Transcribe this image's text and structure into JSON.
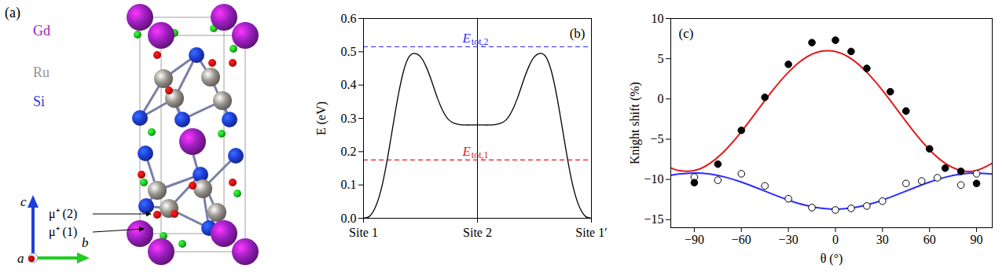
{
  "chart_data": [
    {
      "type": "structure",
      "panel_label": "(a)",
      "elements": [
        {
          "name": "Gd",
          "color": "#9b1fc0"
        },
        {
          "name": "Ru",
          "color": "#9a948e"
        },
        {
          "name": "Si",
          "color": "#1f3fd8"
        }
      ],
      "sites": [
        {
          "label": "μ⁺ (2)",
          "color": "#dd1111"
        },
        {
          "label": "μ⁺ (1)",
          "color": "#22cc22"
        }
      ],
      "axes": [
        {
          "name": "c",
          "color": "#1f3fd8"
        },
        {
          "name": "b",
          "color": "#22cc22"
        },
        {
          "name": "a",
          "color": "#cc0000"
        }
      ]
    },
    {
      "type": "line",
      "panel_label": "(b)",
      "ylabel": "E (eV)",
      "xlim": [
        0,
        2
      ],
      "xticks": [
        {
          "value": 0,
          "label": "Site 1"
        },
        {
          "value": 1,
          "label": "Site 2"
        },
        {
          "value": 2,
          "label": "Site 1′"
        }
      ],
      "ylim": [
        0,
        0.6
      ],
      "yticks": [
        {
          "value": 0,
          "label": "0.0"
        },
        {
          "value": 0.1,
          "label": "0.1"
        },
        {
          "value": 0.2,
          "label": "0.2"
        },
        {
          "value": 0.3,
          "label": "0.3"
        },
        {
          "value": 0.4,
          "label": "0.4"
        },
        {
          "value": 0.5,
          "label": "0.5"
        },
        {
          "value": 0.6,
          "label": "0.6"
        }
      ],
      "x": [
        0,
        0.05,
        0.1,
        0.15,
        0.2,
        0.25,
        0.3,
        0.35,
        0.4,
        0.45,
        0.5,
        0.55,
        0.6,
        0.65,
        0.7,
        0.75,
        0.8,
        0.85,
        0.9,
        0.95,
        1,
        1.05,
        1.1,
        1.15,
        1.2,
        1.25,
        1.3,
        1.35,
        1.4,
        1.45,
        1.5,
        1.55,
        1.6,
        1.65,
        1.7,
        1.75,
        1.8,
        1.85,
        1.9,
        1.95,
        2
      ],
      "values": [
        0,
        0.005,
        0.03,
        0.08,
        0.16,
        0.26,
        0.36,
        0.44,
        0.485,
        0.495,
        0.485,
        0.455,
        0.41,
        0.36,
        0.32,
        0.295,
        0.285,
        0.281,
        0.28,
        0.28,
        0.28,
        0.28,
        0.28,
        0.281,
        0.285,
        0.295,
        0.32,
        0.36,
        0.41,
        0.455,
        0.485,
        0.495,
        0.485,
        0.44,
        0.36,
        0.26,
        0.16,
        0.08,
        0.03,
        0.005,
        0
      ],
      "color": "#000000",
      "rules_x": [
        1
      ],
      "levels": [
        {
          "text": "E",
          "subscript": "tot,2",
          "value": 0.515,
          "color": "#2b2bff",
          "line_style": "dashed"
        },
        {
          "text": "E",
          "subscript": "tot,1",
          "value": 0.175,
          "color": "#e31a1c",
          "line_style": "dashed"
        }
      ]
    },
    {
      "type": "scatter",
      "panel_label": "(c)",
      "xlabel": "θ (°)",
      "ylabel": "Knight shift (%)",
      "xlim": [
        -105,
        100
      ],
      "xticks": [
        -90,
        -60,
        -30,
        0,
        30,
        60,
        90
      ],
      "ylim": [
        -16,
        10
      ],
      "yticks": [
        -15,
        -10,
        -5,
        0,
        5,
        10
      ],
      "series": [
        {
          "type": "line",
          "color": "#e31a1c",
          "line_style": "solid",
          "x": [
            -105,
            -100,
            -90,
            -80,
            -70,
            -60,
            -50,
            -40,
            -30,
            -20,
            -10,
            0,
            10,
            20,
            30,
            40,
            50,
            60,
            70,
            80,
            90,
            100
          ],
          "values": [
            -8.55,
            -8.89,
            -8.89,
            -8.0,
            -6.32,
            -4.07,
            -1.5,
            1.07,
            3.32,
            5.0,
            5.89,
            5.89,
            5.0,
            3.32,
            1.07,
            -1.5,
            -4.07,
            -6.32,
            -8.0,
            -8.89,
            -8.89,
            -8.0
          ]
        },
        {
          "type": "line",
          "color": "#2b2bff",
          "line_style": "solid",
          "x": [
            -105,
            -100,
            -90,
            -80,
            -70,
            -60,
            -50,
            -40,
            -30,
            -20,
            -10,
            0,
            10,
            20,
            30,
            40,
            50,
            60,
            70,
            80,
            90,
            100
          ],
          "values": [
            -9.5,
            -9.34,
            -9.2,
            -9.34,
            -9.73,
            -10.33,
            -11.06,
            -11.84,
            -12.58,
            -13.17,
            -13.56,
            -13.7,
            -13.56,
            -13.17,
            -12.58,
            -11.84,
            -11.06,
            -10.33,
            -9.73,
            -9.34,
            -9.2,
            -9.34
          ]
        },
        {
          "type": "scatter",
          "marker": "open_circle",
          "color": "#000000",
          "x": [
            -90,
            -75,
            -60,
            -45,
            -30,
            -15,
            0,
            10,
            20,
            30,
            45,
            55,
            65,
            80,
            90
          ],
          "values": [
            -9.7,
            -10.1,
            -9.3,
            -10.8,
            -12.4,
            -13.5,
            -13.8,
            -13.6,
            -13.3,
            -12.7,
            -10.5,
            -10.2,
            -9.8,
            -10.7,
            -9.3
          ]
        },
        {
          "type": "scatter",
          "marker": "filled_circle",
          "color": "#000000",
          "x": [
            -90,
            -75,
            -60,
            -45,
            -30,
            -15,
            0,
            10,
            20,
            35,
            45,
            60,
            70,
            80,
            90
          ],
          "values": [
            -10.4,
            -8.1,
            -3.9,
            0.2,
            4.3,
            7.0,
            7.3,
            5.9,
            3.8,
            0.9,
            -1.5,
            -6.2,
            -8.6,
            -9.0,
            -10.5
          ]
        }
      ]
    }
  ]
}
